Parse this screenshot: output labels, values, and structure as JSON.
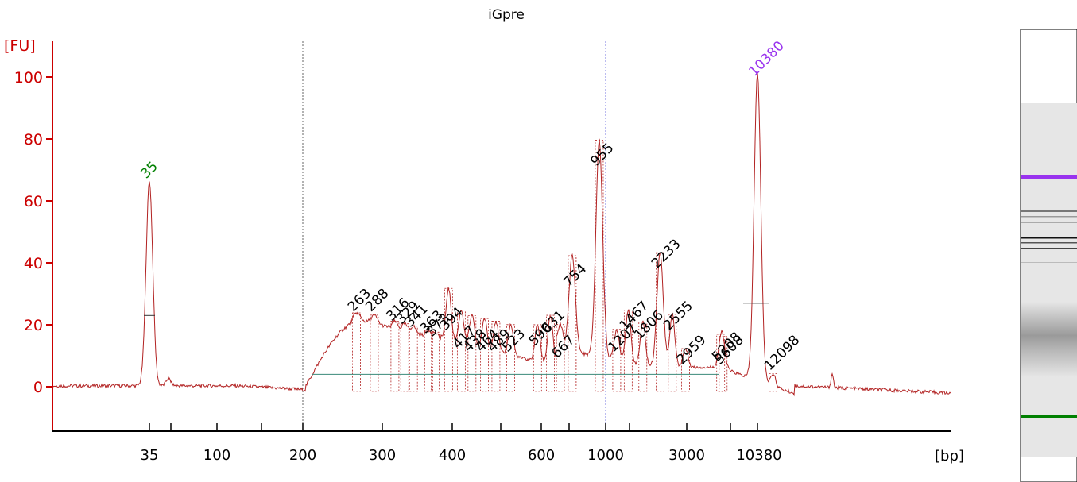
{
  "chart_data": {
    "type": "line",
    "title": "iGpre",
    "ylabel": "[FU]",
    "xlabel": "[bp]",
    "ylim": [
      -13,
      110
    ],
    "y_ticks": [
      0,
      20,
      40,
      60,
      80,
      100
    ],
    "x_tick_labels": [
      "35",
      "100",
      "200",
      "300",
      "400",
      "600",
      "1000",
      "3000",
      "10380"
    ],
    "x_scale": "ladder (non-linear sizing)",
    "series": [
      {
        "peaks": [
          {
            "bp": 35,
            "fu": 66,
            "label": "35",
            "color": "#008000"
          },
          {
            "bp": 263,
            "fu": 23,
            "label": "263"
          },
          {
            "bp": 288,
            "fu": 23,
            "label": "288"
          },
          {
            "bp": 316,
            "fu": 20,
            "label": "316"
          },
          {
            "bp": 329,
            "fu": 19,
            "label": "329"
          },
          {
            "bp": 341,
            "fu": 18,
            "label": "341"
          },
          {
            "bp": 363,
            "fu": 16,
            "label": "363"
          },
          {
            "bp": 373,
            "fu": 15,
            "label": "373"
          },
          {
            "bp": 394,
            "fu": 17,
            "label": "394"
          },
          {
            "bp": 417,
            "fu": 11,
            "label": "417"
          },
          {
            "bp": 438,
            "fu": 10,
            "label": "438"
          },
          {
            "bp": 464,
            "fu": 10,
            "label": "464"
          },
          {
            "bp": 489,
            "fu": 10,
            "label": "489"
          },
          {
            "bp": 523,
            "fu": 10,
            "label": "523"
          },
          {
            "bp": 590,
            "fu": 12,
            "label": "590"
          },
          {
            "bp": 631,
            "fu": 16,
            "label": "631"
          },
          {
            "bp": 667,
            "fu": 8,
            "label": "667"
          },
          {
            "bp": 754,
            "fu": 31,
            "label": "754"
          },
          {
            "bp": 955,
            "fu": 70,
            "label": "955"
          },
          {
            "bp": 1207,
            "fu": 10,
            "label": "1207"
          },
          {
            "bp": 1467,
            "fu": 17,
            "label": "1467"
          },
          {
            "bp": 1806,
            "fu": 14,
            "label": "1806"
          },
          {
            "bp": 2233,
            "fu": 37,
            "label": "2233"
          },
          {
            "bp": 2555,
            "fu": 17,
            "label": "2555"
          },
          {
            "bp": 2959,
            "fu": 6,
            "label": "2959"
          },
          {
            "bp": 5208,
            "fu": 7,
            "label": "5208"
          },
          {
            "bp": 5608,
            "fu": 6,
            "label": "5608"
          },
          {
            "bp": 10380,
            "fu": 99,
            "label": "10380",
            "color": "#9933ee"
          },
          {
            "bp": 12098,
            "fu": 4,
            "label": "12098"
          }
        ]
      }
    ],
    "colors": {
      "trace": "#b22222",
      "axis": "#cc0000",
      "lower_marker": "#008000",
      "upper_marker": "#9933ee",
      "gel_background": "#e6e6e6"
    },
    "gel_lane": {
      "bands": [
        "upper marker (purple)",
        "sample bands (gray)",
        "lower marker (green)"
      ]
    }
  }
}
